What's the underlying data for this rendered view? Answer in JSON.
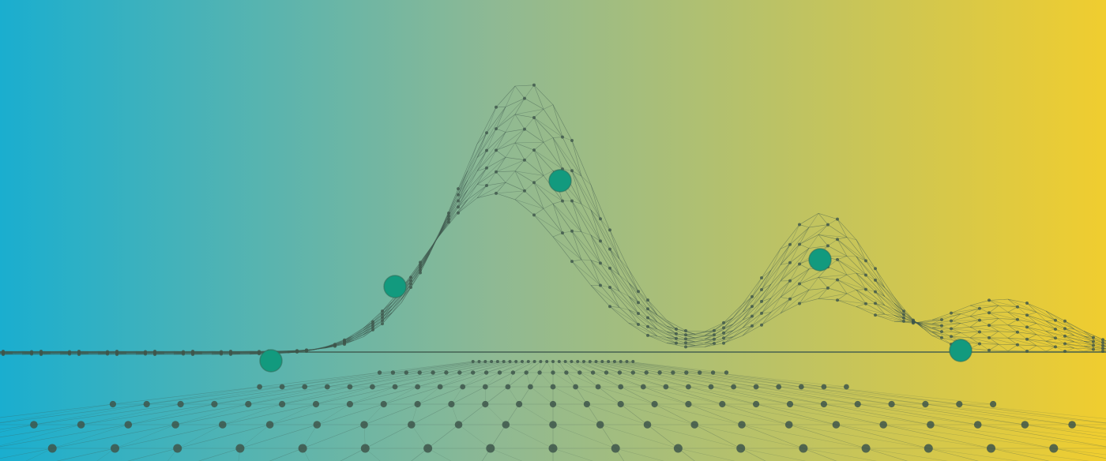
{
  "image": {
    "gradient": {
      "start": "#1aaecf",
      "mid": "#8fb993",
      "end": "#f0cd2f"
    },
    "mesh": {
      "line_color": "#3f5a4f",
      "node_color": "#3e564b"
    },
    "highlight_nodes": {
      "color": "#129a7e",
      "count": 5
    }
  }
}
